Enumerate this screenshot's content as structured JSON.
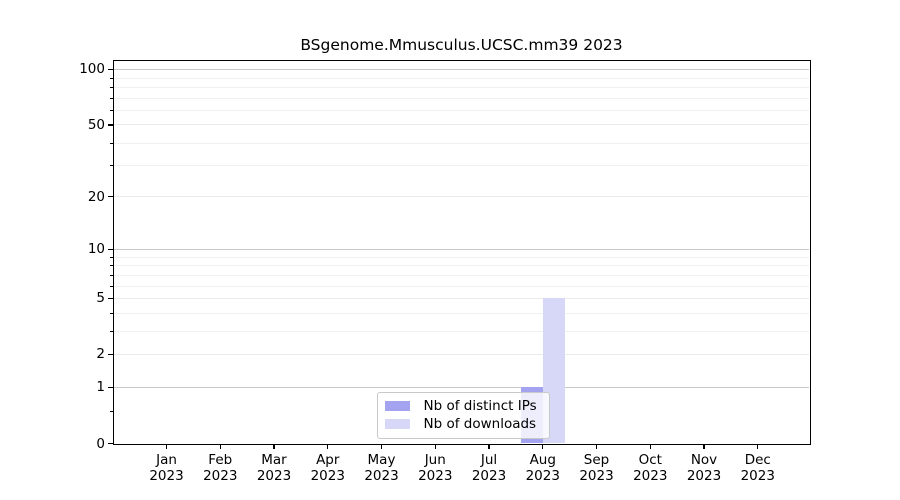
{
  "chart_data": {
    "type": "bar",
    "title": "BSgenome.Mmusculus.UCSC.mm39 2023",
    "categories": [
      "Jan 2023",
      "Feb 2023",
      "Mar 2023",
      "Apr 2023",
      "May 2023",
      "Jun 2023",
      "Jul 2023",
      "Aug 2023",
      "Sep 2023",
      "Oct 2023",
      "Nov 2023",
      "Dec 2023"
    ],
    "series": [
      {
        "name": "Nb of distinct IPs",
        "color": "#a3a3f0",
        "values": [
          0,
          0,
          0,
          0,
          0,
          0,
          0,
          1,
          0,
          0,
          0,
          0
        ]
      },
      {
        "name": "Nb of downloads",
        "color": "#d7d7f8",
        "values": [
          0,
          0,
          0,
          0,
          0,
          0,
          0,
          5,
          0,
          0,
          0,
          0
        ]
      }
    ],
    "xlabel": "",
    "ylabel": "",
    "y_axis": {
      "scale": "log10(1+y)",
      "major_ticks": [
        0,
        1,
        2,
        5,
        10,
        20,
        50,
        100
      ],
      "minor_ticks": [
        0.5,
        3,
        4,
        6,
        7,
        8,
        9,
        30,
        40,
        60,
        70,
        80,
        90
      ],
      "range": [
        0,
        112
      ]
    },
    "grid": {
      "horizontal": true,
      "vertical": false,
      "emphasized_lines": [
        1,
        10,
        100
      ]
    },
    "legend": {
      "position": "lower center inside"
    }
  },
  "colors": {
    "background": "#ffffff",
    "axis": "#000000",
    "grid_major": "#c9c9c9",
    "grid_mid": "#ebebeb",
    "grid_minor": "#f0f0f0",
    "text": "#000000"
  }
}
